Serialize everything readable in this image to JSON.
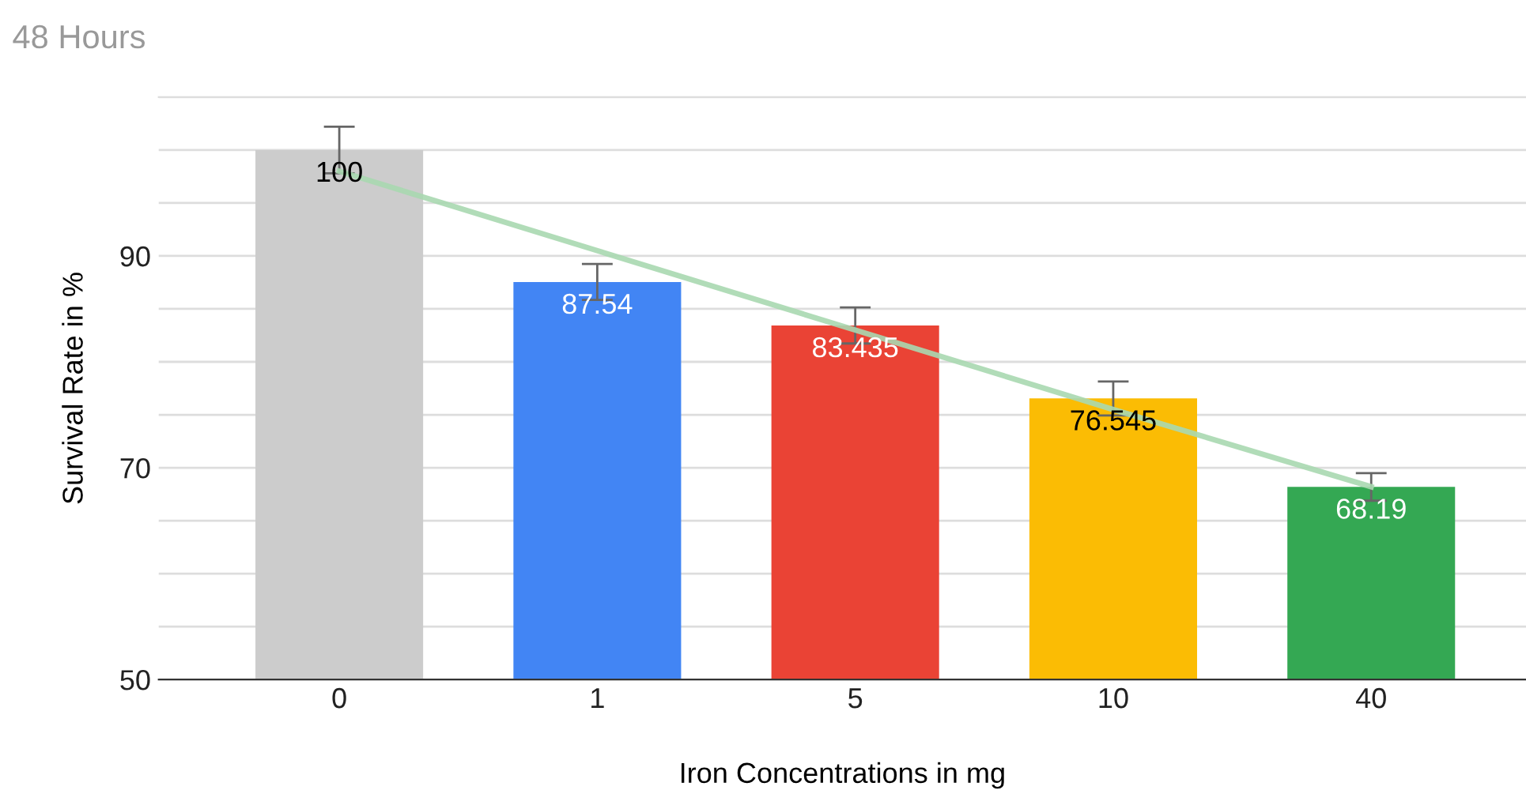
{
  "chart_data": {
    "type": "bar",
    "title": "48 Hours",
    "xlabel": "Iron Concentrations in mg",
    "ylabel": "Survival Rate in %",
    "categories": [
      "0",
      "1",
      "5",
      "10",
      "40"
    ],
    "series": [
      {
        "values": [
          100,
          87.54,
          83.435,
          76.545,
          68.19
        ],
        "value_labels": [
          "100",
          "87.54",
          "83.435",
          "76.545",
          "68.19"
        ],
        "colors": [
          "#cccccc",
          "#4285f4",
          "#ea4335",
          "#fbbc04",
          "#34a853"
        ],
        "errors": [
          2.2,
          1.7,
          1.7,
          1.6,
          1.3
        ]
      },
      {
        "type": "line",
        "values": [
          98,
          90.5,
          83,
          75.5,
          68.2
        ],
        "color": "#a8d8b0"
      }
    ],
    "ylim": [
      50,
      105
    ],
    "yticks": [
      50,
      {
        "value": 55,
        "label": null
      },
      {
        "value": 60,
        "label": null
      },
      {
        "value": 65,
        "label": null
      },
      70,
      {
        "value": 75,
        "label": null
      },
      {
        "value": 80,
        "label": null
      },
      {
        "value": 85,
        "label": null
      },
      90,
      {
        "value": 95,
        "label": null
      },
      {
        "value": 100,
        "label": null
      },
      {
        "value": 105,
        "label": null
      }
    ],
    "grid": "y"
  }
}
